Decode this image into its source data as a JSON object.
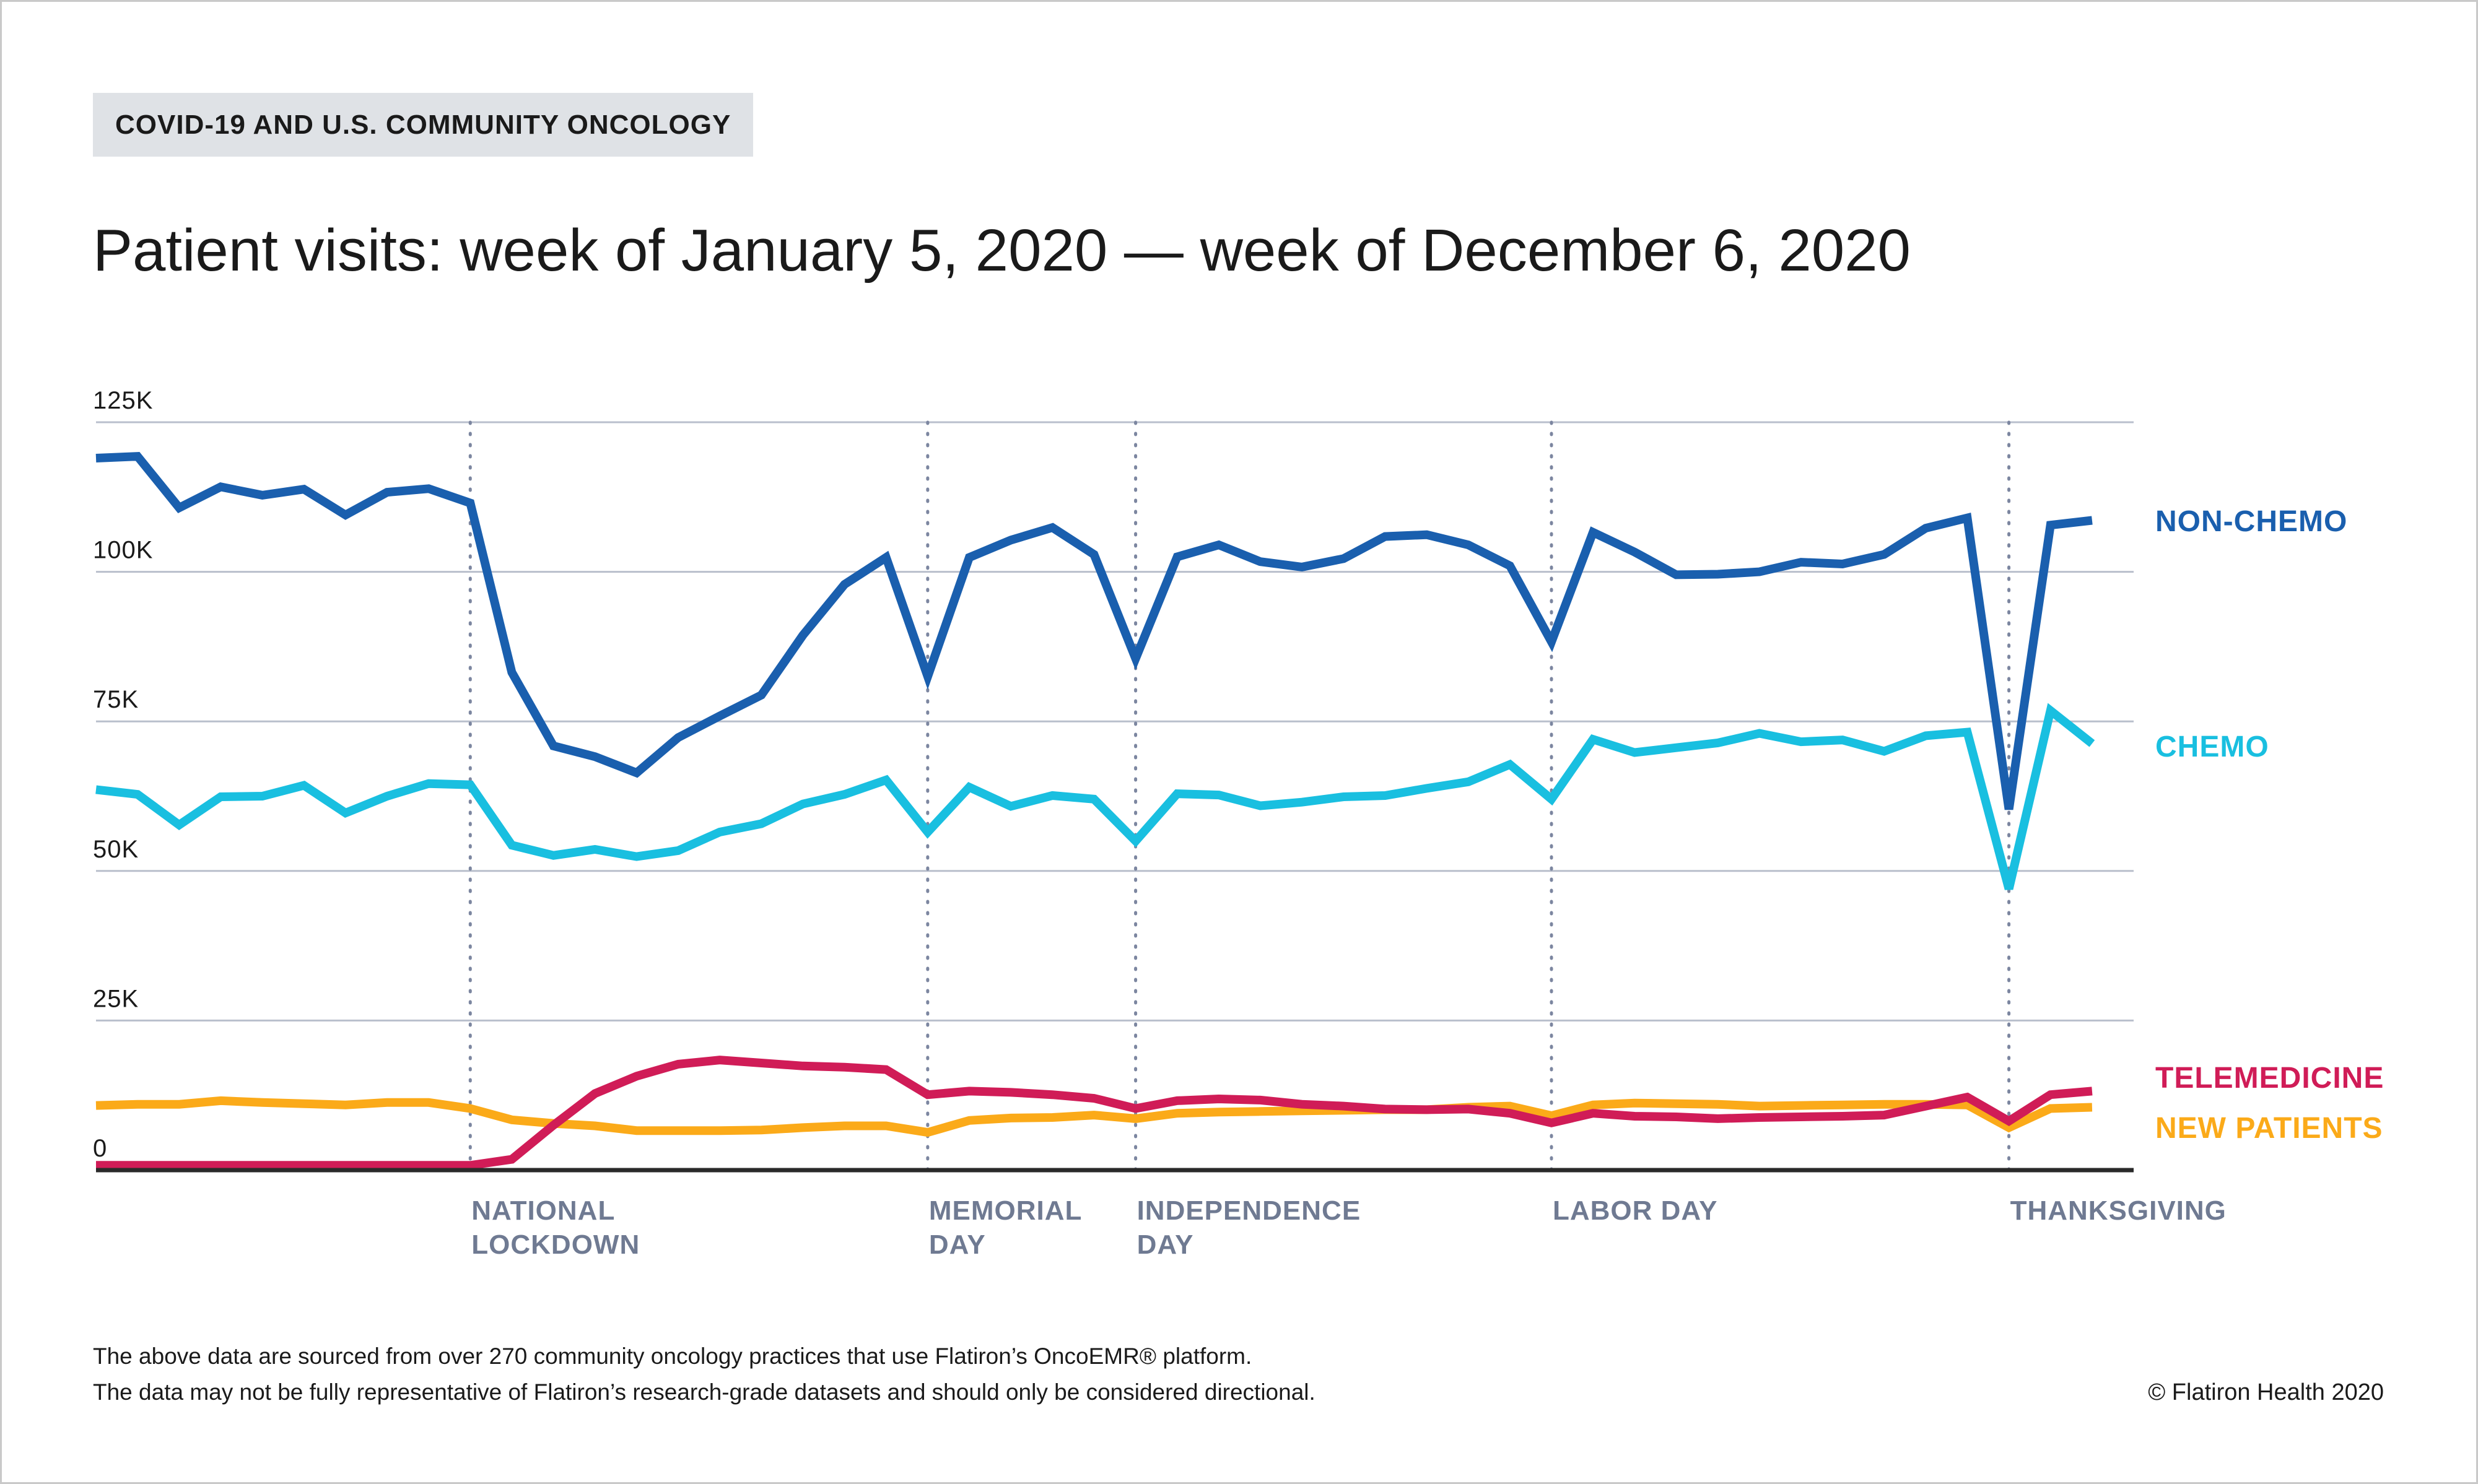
{
  "header": {
    "tag": "COVID-19 AND U.S. COMMUNITY ONCOLOGY",
    "title": "Patient visits: week of January 5, 2020 — week of December 6, 2020"
  },
  "footer": {
    "note_line1": "The above data are sourced from over 270 community oncology practices that use Flatiron’s OncoEMR® platform.",
    "note_line2": "The data may not be fully representative of Flatiron’s research-grade datasets and should only be considered directional.",
    "credit": "© Flatiron Health 2020"
  },
  "colors": {
    "non_chemo": "#1a5fae",
    "chemo": "#19bfe0",
    "telemedicine": "#d01c57",
    "new_patients": "#fbaa19",
    "grid": "#b9bfcc",
    "event_line": "#7c86a0",
    "event_label": "#6f7a92",
    "axis": "#2a2a2a"
  },
  "chart_data": {
    "type": "line",
    "title": "Patient visits: week of January 5, 2020 — week of December 6, 2020",
    "x": [
      1,
      2,
      3,
      4,
      5,
      6,
      7,
      8,
      9,
      10,
      11,
      12,
      13,
      14,
      15,
      16,
      17,
      18,
      19,
      20,
      21,
      22,
      23,
      24,
      25,
      26,
      27,
      28,
      29,
      30,
      31,
      32,
      33,
      34,
      35,
      36,
      37,
      38,
      39,
      40,
      41,
      42,
      43,
      44,
      45,
      46,
      47,
      48,
      49,
      50
    ],
    "xlim": [
      1,
      50
    ],
    "ylim": [
      0,
      125000
    ],
    "yticks": [
      0,
      25000,
      50000,
      75000,
      100000,
      125000
    ],
    "ytick_labels": [
      "0",
      "25K",
      "50K",
      "75K",
      "100K",
      "125K"
    ],
    "grid": true,
    "series": [
      {
        "name": "NON-CHEMO",
        "color_key": "non_chemo",
        "values": [
          119000,
          119300,
          110700,
          114200,
          112800,
          113800,
          109500,
          113300,
          113900,
          111500,
          83200,
          70900,
          69100,
          66400,
          72300,
          75900,
          79400,
          89400,
          97900,
          102400,
          82500,
          102400,
          105300,
          107400,
          102900,
          85500,
          102500,
          104500,
          101700,
          100800,
          102200,
          105900,
          106200,
          104500,
          101000,
          88300,
          106600,
          103300,
          99500,
          99600,
          100000,
          101600,
          101300,
          102900,
          107300,
          109000,
          60300,
          107800,
          108600,
          null
        ],
        "label_value": 108600
      },
      {
        "name": "CHEMO",
        "color_key": "chemo",
        "values": [
          63600,
          62800,
          57700,
          62400,
          62500,
          64300,
          59700,
          62500,
          64600,
          64400,
          54300,
          52600,
          53600,
          52400,
          53400,
          56500,
          57900,
          61200,
          62800,
          65200,
          56500,
          64000,
          60800,
          62600,
          62000,
          55000,
          62900,
          62700,
          60900,
          61500,
          62400,
          62600,
          63800,
          64900,
          67800,
          62000,
          72000,
          69800,
          70600,
          71400,
          73000,
          71600,
          71900,
          70000,
          72600,
          73200,
          47000,
          76800,
          71300,
          null
        ],
        "label_value": 71300
      },
      {
        "name": "TELEMEDICINE",
        "color_key": "telemedicine",
        "values": [
          800,
          800,
          800,
          800,
          800,
          800,
          800,
          800,
          800,
          800,
          1800,
          7500,
          12800,
          15700,
          17700,
          18400,
          17900,
          17400,
          17200,
          16800,
          12600,
          13200,
          13000,
          12600,
          12000,
          10300,
          11600,
          11900,
          11700,
          11000,
          10700,
          10200,
          10100,
          10200,
          9500,
          7900,
          9500,
          9000,
          8900,
          8600,
          8800,
          8900,
          9000,
          9200,
          10700,
          12200,
          8200,
          12600,
          13200,
          null
        ],
        "label_value": 13200
      },
      {
        "name": "NEW PATIENTS",
        "color_key": "new_patients",
        "values": [
          10800,
          11000,
          11000,
          11600,
          11300,
          11100,
          10900,
          11300,
          11300,
          10300,
          8400,
          7800,
          7400,
          6600,
          6600,
          6600,
          6700,
          7100,
          7400,
          7400,
          6300,
          8300,
          8700,
          8800,
          9200,
          8600,
          9500,
          9700,
          9800,
          9900,
          10000,
          10100,
          10100,
          10500,
          10700,
          9100,
          10900,
          11200,
          11100,
          11000,
          10700,
          10800,
          10900,
          11000,
          11000,
          10900,
          7100,
          10300,
          10500,
          null
        ],
        "label_value": 10500
      }
    ],
    "events": [
      {
        "x": 10,
        "label_lines": [
          "NATIONAL",
          "LOCKDOWN"
        ]
      },
      {
        "x": 21,
        "label_lines": [
          "MEMORIAL",
          "DAY"
        ]
      },
      {
        "x": 26,
        "label_lines": [
          "INDEPENDENCE",
          "DAY"
        ]
      },
      {
        "x": 36,
        "label_lines": [
          "LABOR DAY"
        ]
      },
      {
        "x": 47,
        "label_lines": [
          "THANKSGIVING"
        ]
      }
    ]
  }
}
